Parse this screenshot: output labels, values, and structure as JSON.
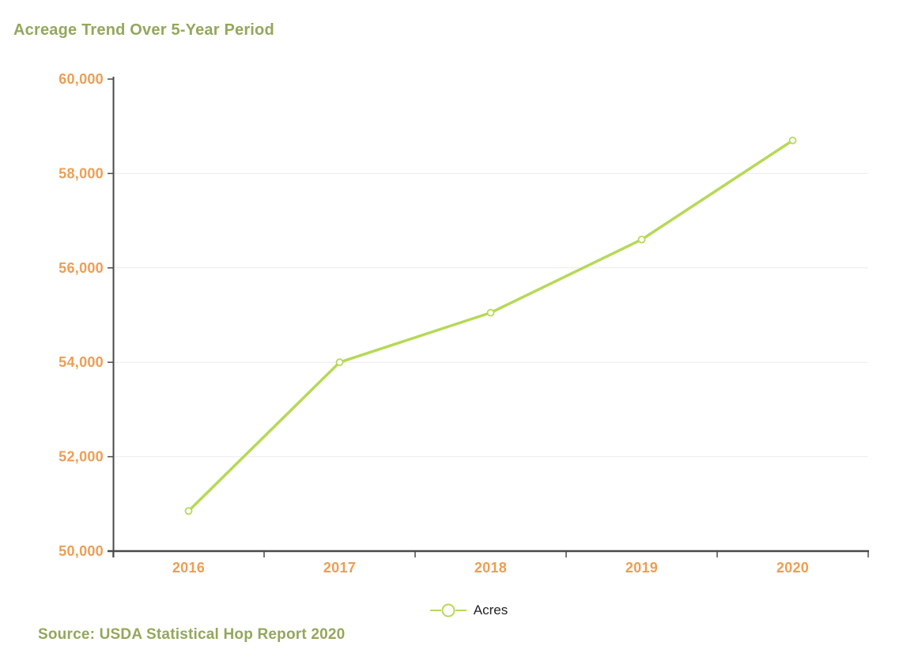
{
  "page": {
    "title": "Acreage Trend Over 5-Year Period",
    "source": "Source: USDA Statistical Hop Report 2020"
  },
  "legend": {
    "label": "Acres"
  },
  "colors": {
    "title_green": "#93a75d",
    "axis_label_orange": "#ee9e54",
    "line_green": "#b6d957",
    "marker_fill": "#ffffff",
    "axis_gray": "#4a4a4a",
    "gridline_gray": "#ebebeb",
    "legend_text": "#222222",
    "background": "#ffffff"
  },
  "chart_data": {
    "type": "line",
    "title": "Acreage Trend Over 5-Year Period",
    "categories": [
      "2016",
      "2017",
      "2018",
      "2019",
      "2020"
    ],
    "series": [
      {
        "name": "Acres",
        "values": [
          50850,
          54000,
          55050,
          56600,
          58700
        ]
      }
    ],
    "xlabel": "",
    "ylabel": "",
    "ylim": [
      50000,
      60000
    ],
    "ytick_step": 2000,
    "ytick_labels": [
      "50,000",
      "52,000",
      "54,000",
      "56,000",
      "58,000",
      "60,000"
    ],
    "grid": "horizontal-only",
    "legend_position": "bottom-center",
    "marker": "hollow-circle",
    "source": "Source: USDA Statistical Hop Report 2020"
  }
}
